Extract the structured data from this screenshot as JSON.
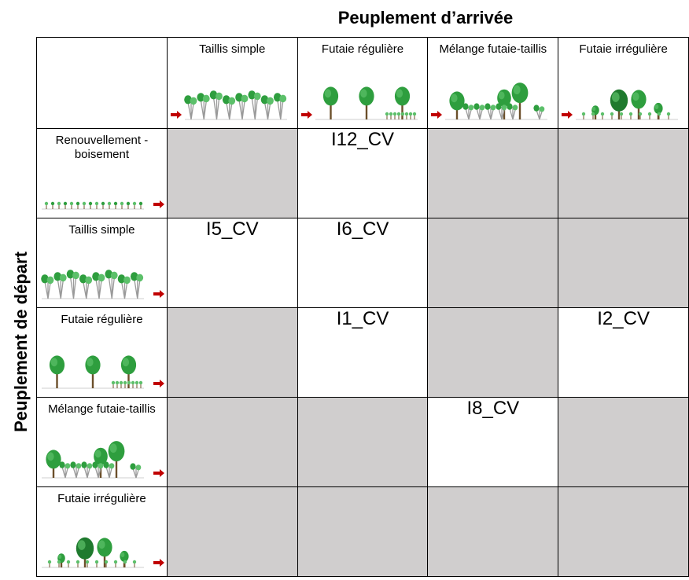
{
  "titles": {
    "columns": "Peuplement d’arrivée",
    "rows": "Peuplement de départ"
  },
  "columns": [
    {
      "label": "Taillis simple",
      "icon": "taillis-simple-icon"
    },
    {
      "label": "Futaie régulière",
      "icon": "futaie-reguliere-icon"
    },
    {
      "label": "Mélange futaie-taillis",
      "icon": "melange-futaie-taillis-icon"
    },
    {
      "label": "Futaie irrégulière",
      "icon": "futaie-irreguliere-icon"
    }
  ],
  "rows": [
    {
      "label": "Renouvellement - boisement",
      "icon": "renouvellement-boisement-icon",
      "cells": [
        "",
        "I12_CV",
        "",
        ""
      ]
    },
    {
      "label": "Taillis simple",
      "icon": "taillis-simple-icon",
      "cells": [
        "I5_CV",
        "I6_CV",
        "",
        ""
      ]
    },
    {
      "label": "Futaie régulière",
      "icon": "futaie-reguliere-icon",
      "cells": [
        "",
        "I1_CV",
        "",
        "I2_CV"
      ]
    },
    {
      "label": "Mélange futaie-taillis",
      "icon": "melange-futaie-taillis-icon",
      "cells": [
        "",
        "",
        "I8_CV",
        ""
      ]
    },
    {
      "label": "Futaie irrégulière",
      "icon": "futaie-irreguliere-icon",
      "cells": [
        "",
        "",
        "",
        ""
      ]
    }
  ],
  "colors": {
    "shaded_cell": "#d0cece",
    "arrow": "#c00000",
    "tree_green": "#2e9e3e",
    "trunk": "#6b4f2a"
  }
}
